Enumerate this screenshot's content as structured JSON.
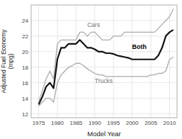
{
  "chart_data": {
    "type": "line",
    "title": "",
    "xlabel": "Model Year",
    "ylabel": "Adjusted Fuel Economy\n(mpg)",
    "x": [
      1975,
      1976,
      1977,
      1978,
      1979,
      1980,
      1981,
      1982,
      1983,
      1984,
      1985,
      1986,
      1987,
      1988,
      1989,
      1990,
      1991,
      1992,
      1993,
      1994,
      1995,
      1996,
      1997,
      1998,
      1999,
      2000,
      2001,
      2002,
      2003,
      2004,
      2005,
      2006,
      2007,
      2008,
      2009,
      2010,
      2011
    ],
    "series": [
      {
        "color": "#aaaaaa",
        "values": [
          13.5,
          15.0,
          16.5,
          17.5,
          16.5,
          21.0,
          21.5,
          21.5,
          21.5,
          21.5,
          21.5,
          22.5,
          22.5,
          22.0,
          22.5,
          22.5,
          22.0,
          21.5,
          21.5,
          21.5,
          22.0,
          22.0,
          22.0,
          22.5,
          22.5,
          22.5,
          22.5,
          22.5,
          22.5,
          22.5,
          22.5,
          22.5,
          23.0,
          23.5,
          24.0,
          24.5,
          25.5
        ]
      },
      {
        "color": "#aaaaaa",
        "values": [
          13.0,
          13.5,
          14.0,
          14.0,
          13.5,
          16.0,
          17.0,
          17.5,
          18.0,
          18.2,
          18.5,
          18.5,
          18.2,
          17.8,
          17.5,
          17.2,
          17.0,
          17.0,
          16.8,
          16.8,
          16.8,
          16.8,
          16.8,
          16.8,
          16.8,
          16.8,
          16.8,
          16.8,
          16.8,
          16.8,
          17.0,
          17.0,
          17.2,
          17.2,
          17.5,
          19.0,
          19.3
        ]
      },
      {
        "color": "#111111",
        "values": [
          13.2,
          14.2,
          15.5,
          16.0,
          15.3,
          19.0,
          20.5,
          20.5,
          21.0,
          21.0,
          21.0,
          21.5,
          21.0,
          20.5,
          20.5,
          20.3,
          20.0,
          20.0,
          19.8,
          19.8,
          19.7,
          19.5,
          19.4,
          19.3,
          19.2,
          19.0,
          19.0,
          19.0,
          19.0,
          19.0,
          19.0,
          19.0,
          19.5,
          20.5,
          22.0,
          22.5,
          22.8
        ]
      }
    ],
    "annotations": [
      {
        "text": "Cars",
        "x": 1988,
        "y": 23.0
      },
      {
        "text": "Trucks",
        "x": 1990,
        "y": 15.8
      },
      {
        "text": "Both",
        "x": 2000,
        "y": 20.2
      }
    ],
    "xlim": [
      1973,
      2012
    ],
    "ylim": [
      11.5,
      26
    ],
    "xticks": [
      1975,
      1980,
      1985,
      1990,
      1995,
      2000,
      2005,
      2010
    ],
    "yticks": [
      12,
      14,
      16,
      18,
      20,
      22,
      24
    ],
    "grid": true
  }
}
